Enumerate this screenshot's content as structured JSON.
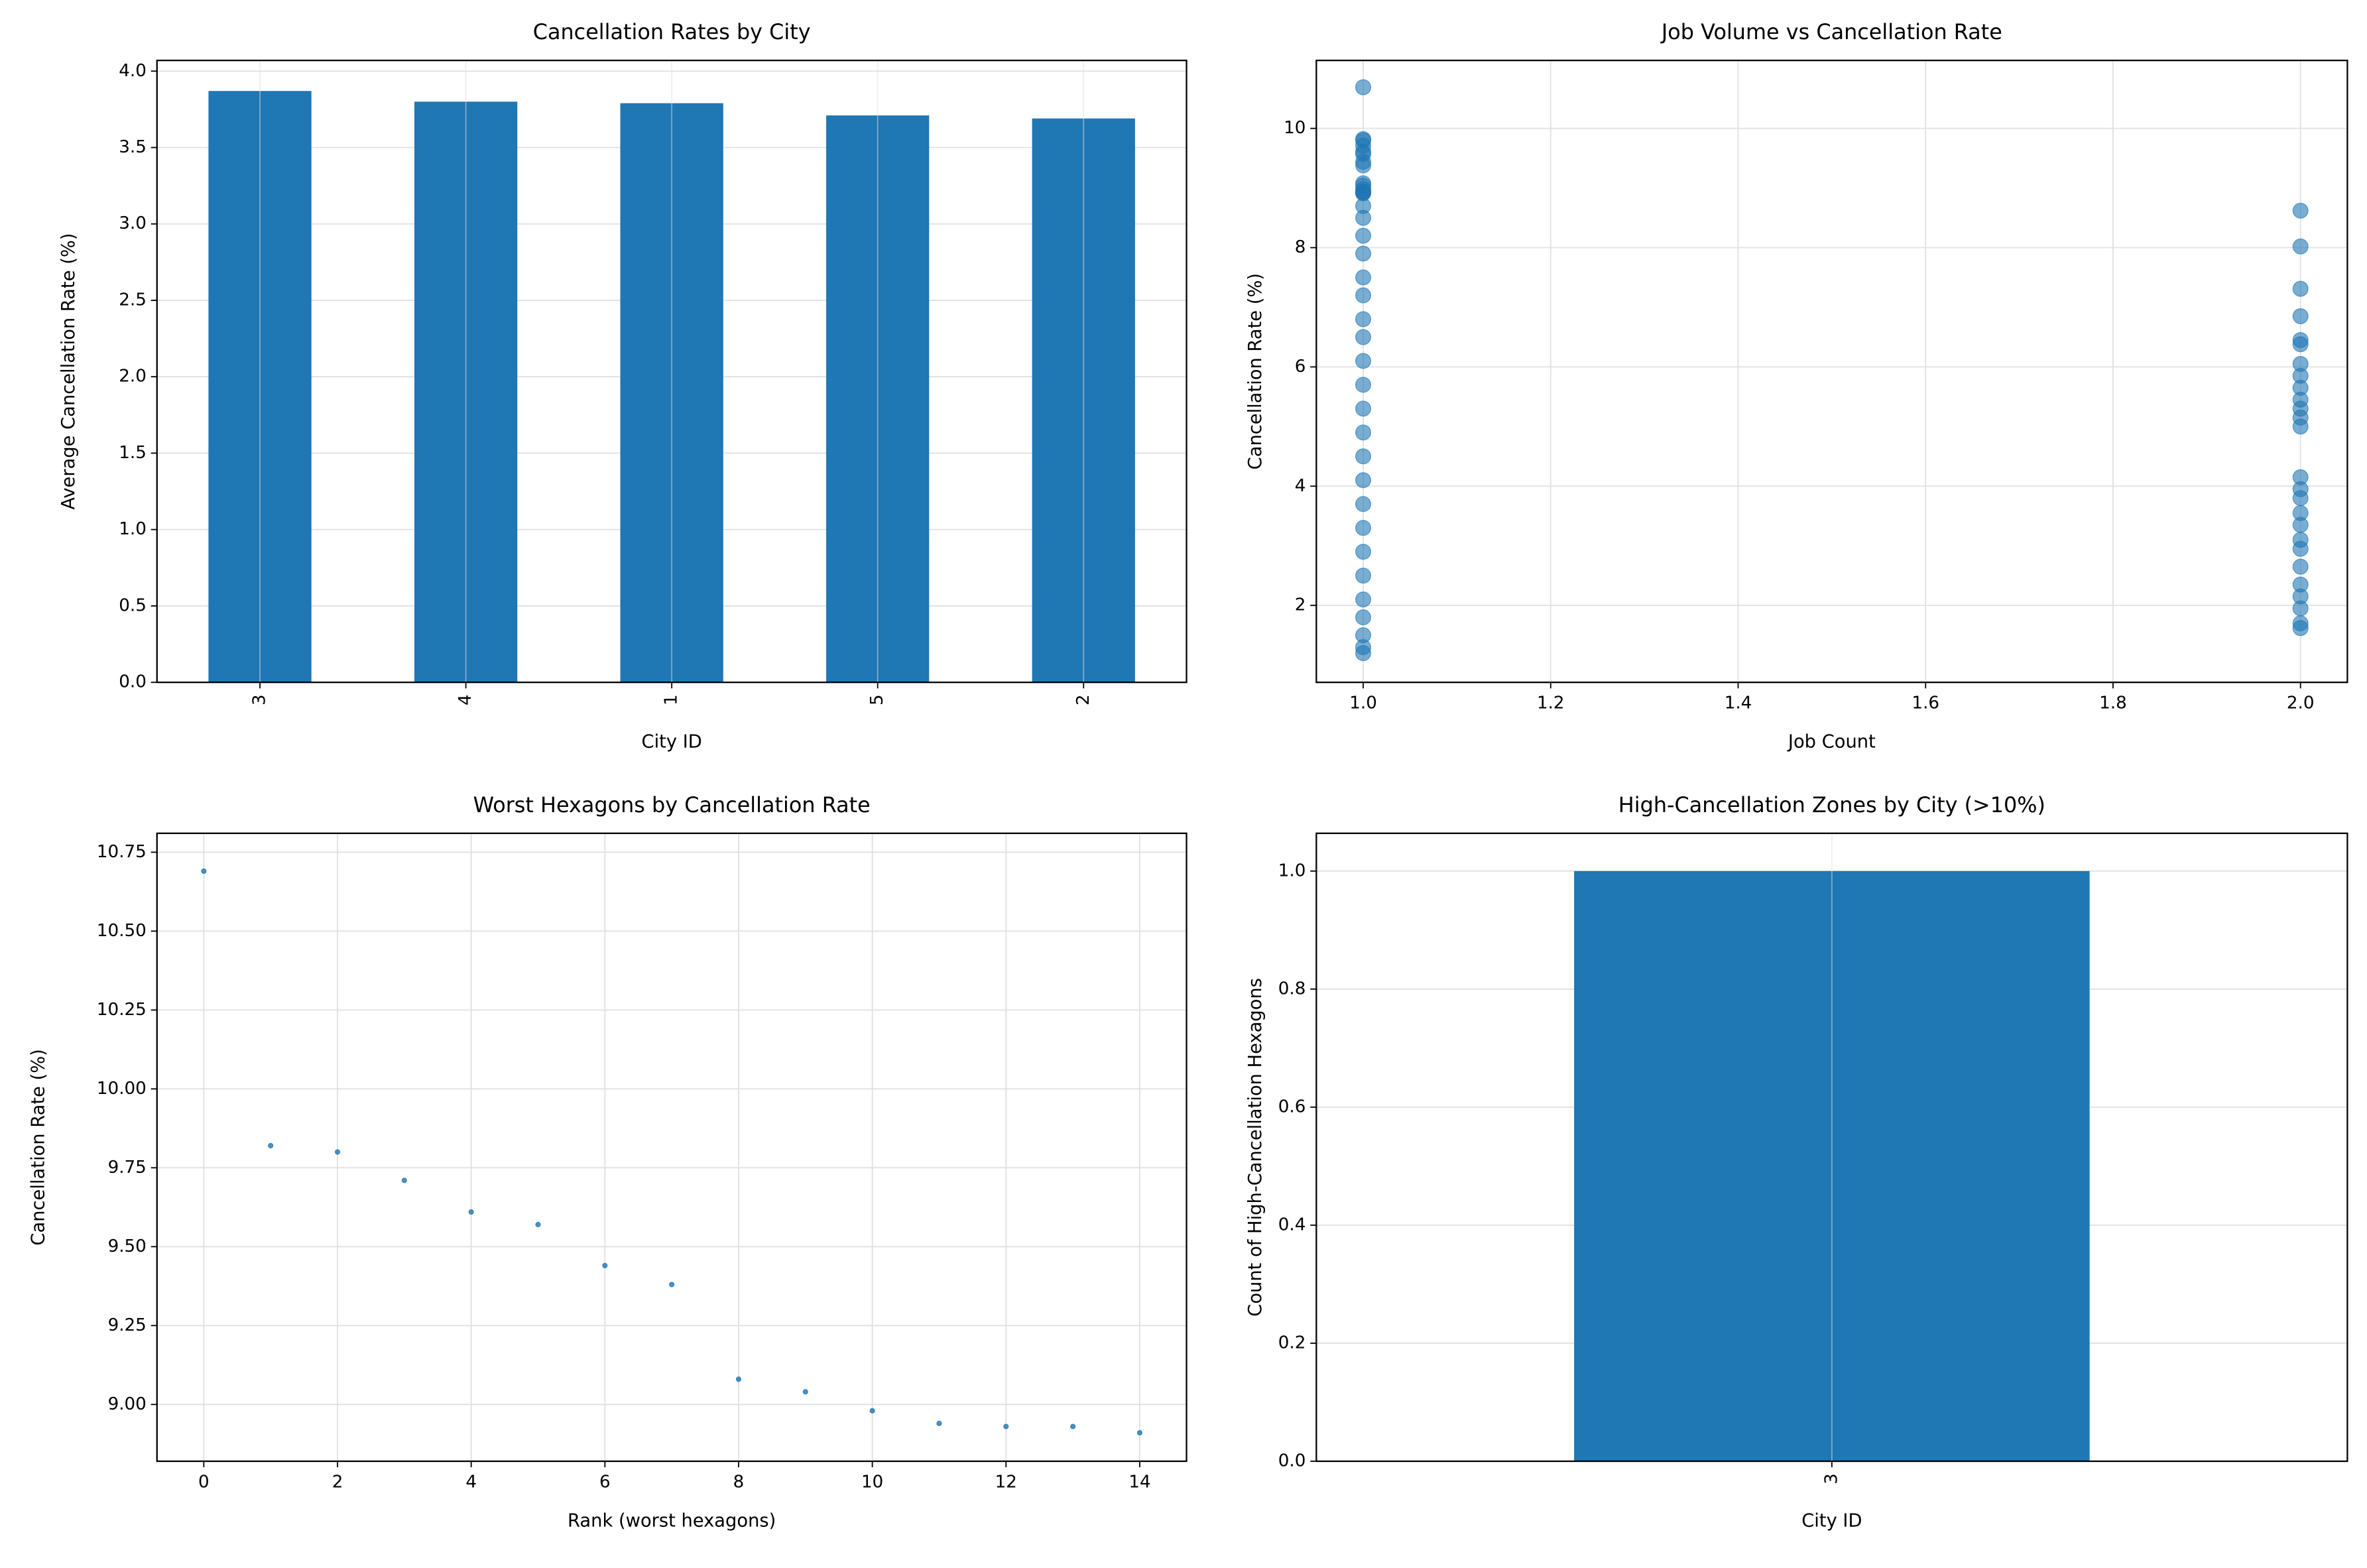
{
  "chart_data": [
    {
      "type": "bar",
      "title": "Cancellation Rates by City",
      "x_label": "City ID",
      "y_label": "Average Cancellation Rate (%)",
      "categories": [
        "3",
        "4",
        "1",
        "5",
        "2"
      ],
      "values": [
        3.87,
        3.8,
        3.79,
        3.71,
        3.69
      ],
      "color": "#1f77b4",
      "ylim": [
        0,
        4.07
      ],
      "yticks": [
        {
          "value": 0,
          "label": "0.0"
        },
        {
          "value": 0.5,
          "label": "0.5"
        },
        {
          "value": 1,
          "label": "1.0"
        },
        {
          "value": 1.5,
          "label": "1.5"
        },
        {
          "value": 2,
          "label": "2.0"
        },
        {
          "value": 2.5,
          "label": "2.5"
        },
        {
          "value": 3,
          "label": "3.0"
        },
        {
          "value": 3.5,
          "label": "3.5"
        },
        {
          "value": 4,
          "label": "4.0"
        }
      ],
      "grid": true,
      "rotate_x_labels": true
    },
    {
      "type": "scatter",
      "title": "Job Volume vs Cancellation Rate",
      "x_label": "Job Count",
      "y_label": "Cancellation Rate (%)",
      "series": [
        {
          "color": "#1f77b4",
          "x": [
            1,
            1,
            1,
            1,
            1,
            1,
            1,
            1,
            1,
            1,
            1,
            1,
            1,
            1,
            1,
            1,
            1,
            1,
            1,
            1,
            1,
            1,
            1,
            1,
            1,
            1,
            1,
            1,
            1,
            1,
            1,
            1,
            1,
            1,
            1,
            1,
            1,
            1,
            2,
            2,
            2,
            2,
            2,
            2,
            2,
            2,
            2,
            2,
            2,
            2,
            2,
            2,
            2,
            2,
            2,
            2,
            2,
            2,
            2,
            2,
            2,
            2,
            2,
            2
          ],
          "values": [
            10.69,
            9.82,
            9.8,
            9.71,
            9.61,
            9.57,
            9.44,
            9.38,
            9.08,
            9.04,
            8.98,
            8.94,
            8.93,
            8.93,
            8.91,
            8.7,
            8.5,
            8.2,
            7.9,
            7.5,
            7.2,
            6.8,
            6.5,
            6.1,
            5.7,
            5.3,
            4.9,
            4.5,
            4.1,
            3.7,
            3.3,
            2.9,
            2.5,
            2.1,
            1.8,
            1.5,
            1.3,
            1.2,
            8.62,
            8.02,
            7.31,
            6.85,
            6.45,
            6.38,
            6.05,
            5.85,
            5.65,
            5.45,
            5.3,
            5.15,
            5.0,
            4.15,
            3.95,
            3.8,
            3.55,
            3.35,
            3.1,
            2.95,
            2.65,
            2.35,
            2.15,
            1.95,
            1.7,
            1.62
          ]
        }
      ],
      "xlim": [
        0.95,
        2.05
      ],
      "xticks": [
        {
          "value": 1,
          "label": "1.0"
        },
        {
          "value": 1.2,
          "label": "1.2"
        },
        {
          "value": 1.4,
          "label": "1.4"
        },
        {
          "value": 1.6,
          "label": "1.6"
        },
        {
          "value": 1.8,
          "label": "1.8"
        },
        {
          "value": 2,
          "label": "2.0"
        }
      ],
      "ylim": [
        0.71,
        11.14
      ],
      "yticks": [
        2,
        4,
        6,
        8,
        10
      ],
      "grid": true,
      "marker_radius": 5,
      "alpha": 0.6
    },
    {
      "type": "scatter",
      "title": "Worst Hexagons by Cancellation Rate",
      "x_label": "Rank (worst hexagons)",
      "y_label": "Cancellation Rate (%)",
      "series": [
        {
          "color": "#1f77b4",
          "x": [
            0,
            1,
            2,
            3,
            4,
            5,
            6,
            7,
            8,
            9,
            10,
            11,
            12,
            13,
            14
          ],
          "values": [
            10.69,
            9.82,
            9.8,
            9.71,
            9.61,
            9.57,
            9.44,
            9.38,
            9.08,
            9.04,
            8.98,
            8.94,
            8.93,
            8.93,
            8.91
          ]
        }
      ],
      "xlim": [
        -0.7,
        14.7
      ],
      "xticks": [
        0,
        2,
        4,
        6,
        8,
        10,
        12,
        14
      ],
      "ylim": [
        8.82,
        10.81
      ],
      "yticks": [
        {
          "value": 9,
          "label": "9.00"
        },
        {
          "value": 9.25,
          "label": "9.25"
        },
        {
          "value": 9.5,
          "label": "9.50"
        },
        {
          "value": 9.75,
          "label": "9.75"
        },
        {
          "value": 10,
          "label": "10.00"
        },
        {
          "value": 10.25,
          "label": "10.25"
        },
        {
          "value": 10.5,
          "label": "10.50"
        },
        {
          "value": 10.75,
          "label": "10.75"
        }
      ],
      "grid": true,
      "marker_radius": 1.5,
      "alpha": 0.8
    },
    {
      "type": "bar",
      "title": "High-Cancellation Zones by City (>10%)",
      "x_label": "City ID",
      "y_label": "Count of High-Cancellation Hexagons",
      "categories": [
        "3"
      ],
      "values": [
        1
      ],
      "color": "#1f77b4",
      "ylim": [
        0,
        1.064
      ],
      "yticks": [
        {
          "value": 0,
          "label": "0.0"
        },
        {
          "value": 0.2,
          "label": "0.2"
        },
        {
          "value": 0.4,
          "label": "0.4"
        },
        {
          "value": 0.6,
          "label": "0.6"
        },
        {
          "value": 0.8,
          "label": "0.8"
        },
        {
          "value": 1,
          "label": "1.0"
        }
      ],
      "grid": true,
      "rotate_x_labels": true
    }
  ]
}
